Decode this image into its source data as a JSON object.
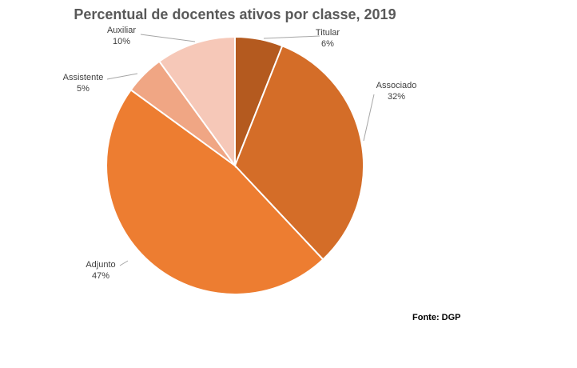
{
  "chart_data": {
    "type": "pie",
    "title": "Percentual de docentes ativos por classe, 2019",
    "source": "Fonte: DGP",
    "slices": [
      {
        "name": "Titular",
        "value": 6,
        "label": "6%",
        "color": "#b45a1f"
      },
      {
        "name": "Associado",
        "value": 32,
        "label": "32%",
        "color": "#d46d28"
      },
      {
        "name": "Adjunto",
        "value": 47,
        "label": "47%",
        "color": "#ed7d31"
      },
      {
        "name": "Assistente",
        "value": 5,
        "label": "5%",
        "color": "#f0a684"
      },
      {
        "name": "Auxiliar",
        "value": 10,
        "label": "10%",
        "color": "#f6c8b8"
      }
    ]
  }
}
